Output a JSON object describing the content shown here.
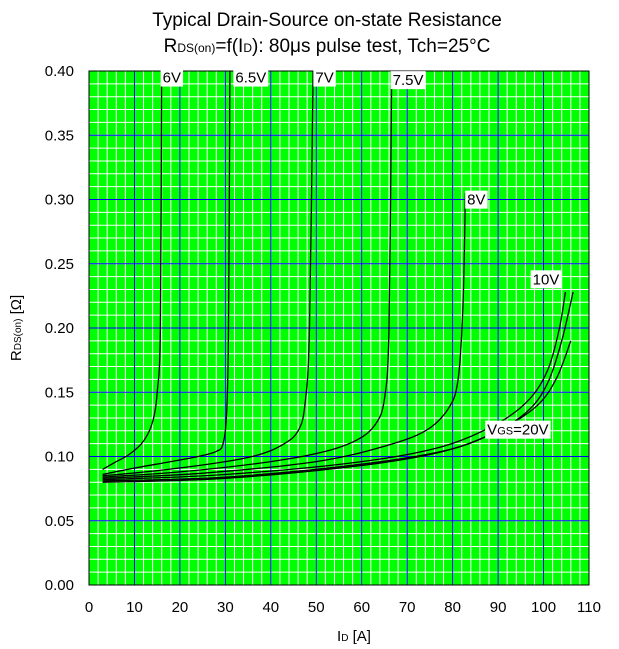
{
  "chart_data": {
    "type": "line",
    "title": "Typical Drain-Source on-state Resistance",
    "subtitle_prefix": "R",
    "subtitle_sub": "DS(on)",
    "subtitle_mid": "=f(I",
    "subtitle_sub2": "D",
    "subtitle_rest": "): 80μs pulse test, Tch=25°C",
    "xlabel_main": "I",
    "xlabel_sub": "D",
    "xlabel_unit": " [A]",
    "ylabel_main": "R",
    "ylabel_sub": "DS(on)",
    "ylabel_unit": " [Ω]",
    "xlim": [
      0,
      110
    ],
    "ylim": [
      0,
      0.4
    ],
    "x_ticks": [
      "0",
      "10",
      "20",
      "30",
      "40",
      "50",
      "60",
      "70",
      "80",
      "90",
      "100",
      "110"
    ],
    "y_ticks": [
      "0.00",
      "0.05",
      "0.10",
      "0.15",
      "0.20",
      "0.25",
      "0.30",
      "0.35",
      "0.40"
    ],
    "grid": true,
    "colors": {
      "background": "#00ff00",
      "minor_grid": "#ffffff",
      "major_grid": "#0000ff",
      "curve": "#000000"
    },
    "series": [
      {
        "name": "6V",
        "x": [
          3,
          6,
          9,
          12,
          14,
          15,
          15.7,
          16
        ],
        "y": [
          0.09,
          0.096,
          0.102,
          0.112,
          0.127,
          0.15,
          0.2,
          0.4
        ]
      },
      {
        "name": "6.5V",
        "x": [
          3,
          10,
          18,
          24,
          28,
          29.5,
          30.3,
          30.7,
          31
        ],
        "y": [
          0.086,
          0.091,
          0.096,
          0.1,
          0.104,
          0.11,
          0.135,
          0.2,
          0.4
        ]
      },
      {
        "name": "7V",
        "x": [
          3,
          15,
          30,
          38,
          43,
          46,
          47.5,
          48.5,
          49.3
        ],
        "y": [
          0.085,
          0.089,
          0.096,
          0.102,
          0.11,
          0.12,
          0.14,
          0.2,
          0.4
        ]
      },
      {
        "name": "7.5V",
        "x": [
          3,
          20,
          40,
          52,
          59,
          63,
          65,
          66,
          66.6
        ],
        "y": [
          0.084,
          0.088,
          0.096,
          0.104,
          0.113,
          0.125,
          0.145,
          0.2,
          0.4
        ]
      },
      {
        "name": "8V",
        "x": [
          3,
          25,
          50,
          65,
          74,
          79,
          81.2,
          82.3,
          82.8
        ],
        "y": [
          0.083,
          0.087,
          0.096,
          0.108,
          0.12,
          0.137,
          0.16,
          0.22,
          0.305
        ]
      },
      {
        "name": "10V",
        "x": [
          3,
          30,
          60,
          78,
          90,
          97,
          101,
          103.5,
          104.8
        ],
        "y": [
          0.082,
          0.086,
          0.096,
          0.108,
          0.126,
          0.145,
          0.168,
          0.2,
          0.228
        ]
      },
      {
        "name": "VGS=20V",
        "x": [
          3,
          30,
          60,
          78,
          90,
          97,
          101,
          104,
          106.5
        ],
        "y": [
          0.08,
          0.083,
          0.093,
          0.104,
          0.12,
          0.137,
          0.158,
          0.19,
          0.228
        ]
      },
      {
        "name": "",
        "x": [
          3,
          30,
          60,
          80,
          92,
          99,
          103,
          106
        ],
        "y": [
          0.081,
          0.084,
          0.094,
          0.106,
          0.124,
          0.141,
          0.162,
          0.19
        ]
      }
    ],
    "labels": [
      {
        "text": "6V",
        "x": 16.2,
        "y": 0.391
      },
      {
        "text": "6.5V",
        "x": 32.2,
        "y": 0.391
      },
      {
        "text": "7V",
        "x": 49.8,
        "y": 0.391
      },
      {
        "text": "7.5V",
        "x": 66.8,
        "y": 0.389
      },
      {
        "text": "8V",
        "x": 83.2,
        "y": 0.296
      },
      {
        "text": "10V",
        "x": 97.6,
        "y": 0.234
      },
      {
        "text_main": "V",
        "text_sub": "GS",
        "text_rest": "=20V",
        "x": 87.6,
        "y": 0.117
      }
    ]
  }
}
